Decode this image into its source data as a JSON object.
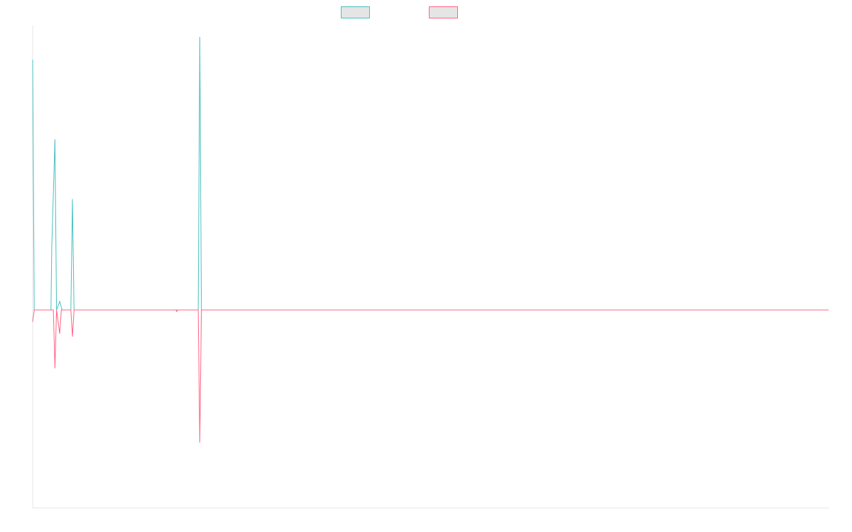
{
  "chart_data": {
    "type": "line",
    "title": "",
    "xlabel": "",
    "ylabel": "",
    "xlim": [
      0,
      1000
    ],
    "ylim": [
      -100,
      100
    ],
    "grid": false,
    "legend_position": "top-center",
    "series": [
      {
        "color": "#4bc0c0",
        "fill": "#e5e5e5",
        "points": [
          [
            0,
            88
          ],
          [
            2,
            0
          ],
          [
            23,
            0
          ],
          [
            24,
            22
          ],
          [
            28,
            60
          ],
          [
            30,
            0
          ],
          [
            34,
            3
          ],
          [
            37,
            0
          ],
          [
            48,
            0
          ],
          [
            50,
            39
          ],
          [
            52,
            0
          ],
          [
            150,
            0
          ],
          [
            200,
            0
          ],
          [
            208,
            0
          ],
          [
            210,
            96
          ],
          [
            212,
            0
          ],
          [
            1000,
            0
          ]
        ]
      },
      {
        "color": "#ff6384",
        "fill": "#e5e5e5",
        "points": [
          [
            0,
            -6
          ],
          [
            2,
            0
          ],
          [
            26,
            0
          ],
          [
            28,
            -29.5
          ],
          [
            30,
            0
          ],
          [
            34,
            -12
          ],
          [
            36,
            0
          ],
          [
            48,
            0
          ],
          [
            50,
            -13.5
          ],
          [
            52,
            0
          ],
          [
            180,
            0
          ],
          [
            181,
            -0.8
          ],
          [
            182,
            0
          ],
          [
            208,
            0
          ],
          [
            210,
            -67
          ],
          [
            212,
            0
          ],
          [
            1000,
            0
          ]
        ]
      }
    ]
  }
}
